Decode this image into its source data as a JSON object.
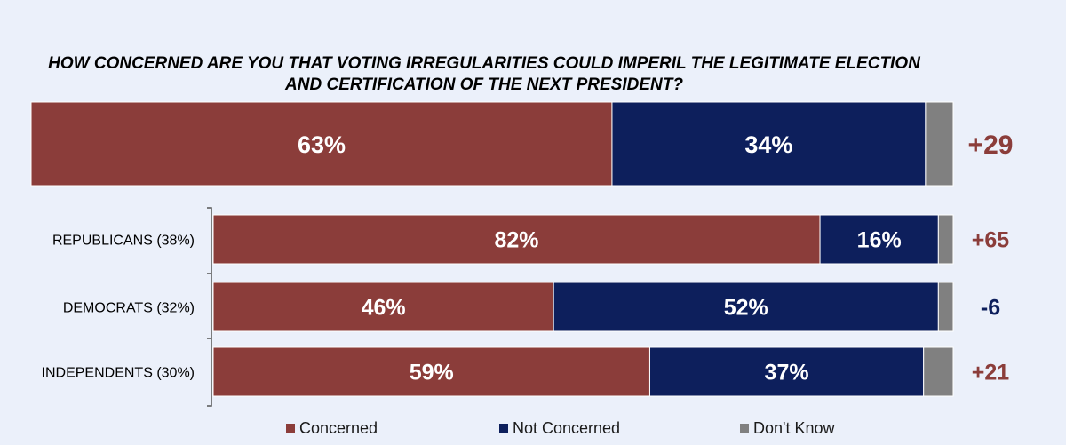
{
  "title_lines": [
    "HOW CONCERNED ARE YOU THAT VOTING IRREGULARITIES COULD IMPERIL THE LEGITIMATE ELECTION",
    "AND CERTIFICATION OF THE NEXT PRESIDENT?"
  ],
  "colors": {
    "concerned": "#8b3d3a",
    "not_concerned": "#0d1f5c",
    "dont_know": "#808080",
    "net_positive": "#8b3d3a",
    "net_negative": "#0d1f5c"
  },
  "chart_data": {
    "type": "bar",
    "orientation": "horizontal",
    "stacked": true,
    "xlim": [
      0,
      100
    ],
    "categories": [
      "",
      "REPUBLICANS (38%)",
      "DEMOCRATS (32%)",
      "INDEPENDENTS (30%)"
    ],
    "series": [
      {
        "name": "Concerned",
        "values": [
          63,
          82,
          46,
          59
        ],
        "labels": [
          "63%",
          "82%",
          "46%",
          "59%"
        ]
      },
      {
        "name": "Not Concerned",
        "values": [
          34,
          16,
          52,
          37
        ],
        "labels": [
          "34%",
          "16%",
          "52%",
          "37%"
        ]
      },
      {
        "name": "Don't Know",
        "values": [
          3,
          2,
          2,
          4
        ]
      }
    ],
    "net": [
      "+29",
      "+65",
      "-6",
      "+21"
    ],
    "net_values": [
      29,
      65,
      -6,
      21
    ],
    "legend": [
      "Concerned",
      "Not Concerned",
      "Don't Know"
    ],
    "legend_position": "bottom",
    "grid": false
  }
}
